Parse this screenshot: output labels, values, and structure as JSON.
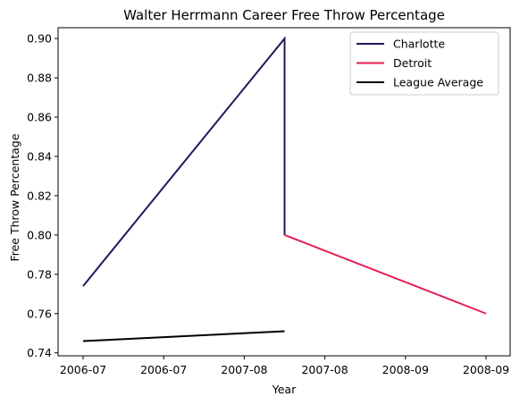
{
  "chart_data": {
    "type": "line",
    "title": "Walter Herrmann Career Free Throw Percentage",
    "xlabel": "Year",
    "ylabel": "Free Throw Percentage",
    "x_tick_labels": [
      "2006-07",
      "2006-07",
      "2007-08",
      "2007-08",
      "2008-09",
      "2008-09"
    ],
    "x_categories": [
      "2006-07",
      "2007-08",
      "2008-09"
    ],
    "y_ticks": [
      0.74,
      0.76,
      0.78,
      0.8,
      0.82,
      0.84,
      0.86,
      0.88,
      0.9
    ],
    "y_tick_labels": [
      "0.74",
      "0.76",
      "0.78",
      "0.80",
      "0.82",
      "0.84",
      "0.86",
      "0.88",
      "0.90"
    ],
    "ylim": [
      0.7385,
      0.9055
    ],
    "grid": false,
    "legend_position": "top-right",
    "series": [
      {
        "name": "Charlotte",
        "color": "#1f1a5c",
        "points": [
          {
            "x": "2006-07",
            "y": 0.774
          },
          {
            "x": "2007-08",
            "y": 0.9
          },
          {
            "x": "2007-08",
            "y": 0.8
          }
        ]
      },
      {
        "name": "Detroit",
        "color": "#e41f52",
        "points": [
          {
            "x": "2007-08",
            "y": 0.8
          },
          {
            "x": "2008-09",
            "y": 0.76
          }
        ]
      },
      {
        "name": "League Average",
        "color": "#000000",
        "points": [
          {
            "x": "2006-07",
            "y": 0.746
          },
          {
            "x": "2007-08",
            "y": 0.751
          }
        ]
      }
    ]
  }
}
